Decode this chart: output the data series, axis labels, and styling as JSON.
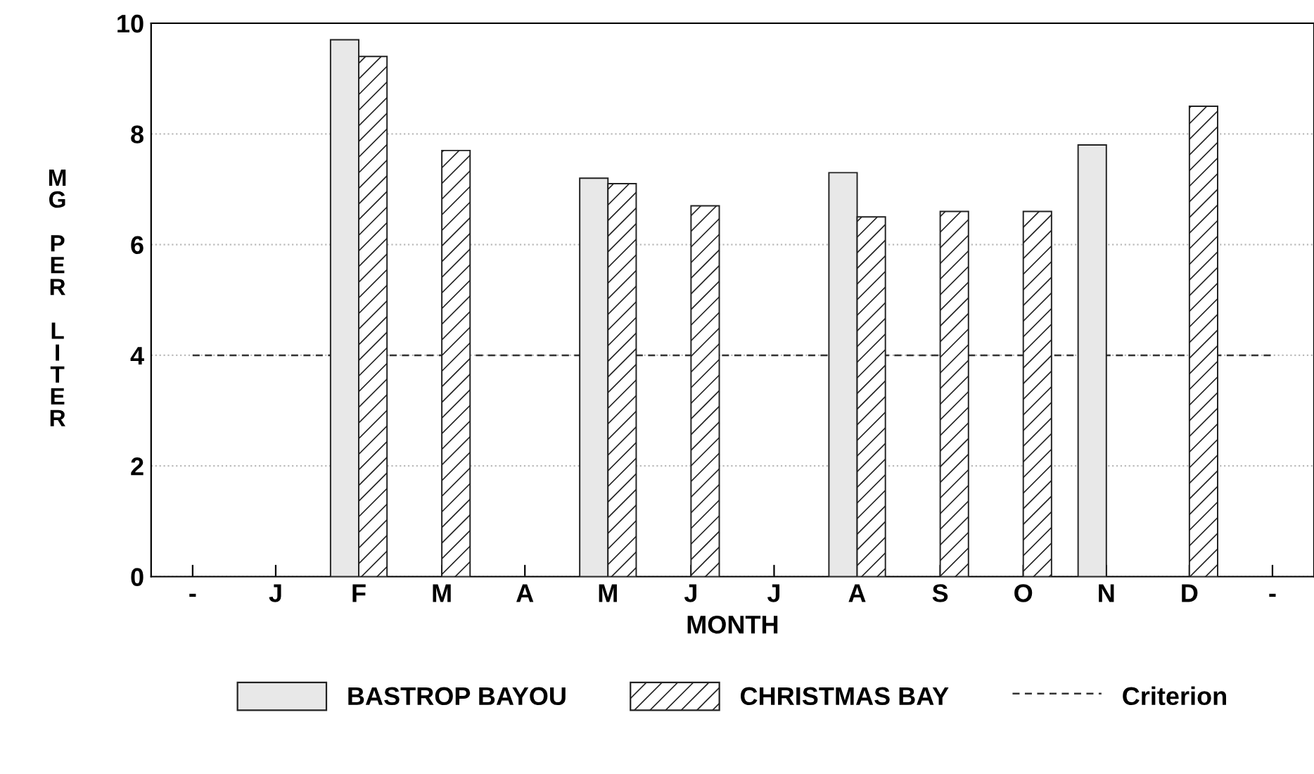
{
  "chart_data": {
    "type": "bar",
    "xlabel": "MONTH",
    "ylabel": "MG PER LITER",
    "categories": [
      "-",
      "J",
      "F",
      "M",
      "A",
      "M",
      "J",
      "J",
      "A",
      "S",
      "O",
      "N",
      "D",
      "-"
    ],
    "series": [
      {
        "name": "BASTROP BAYOU",
        "color": "#e8e8e8",
        "values": [
          null,
          null,
          9.7,
          null,
          null,
          7.2,
          null,
          null,
          7.3,
          null,
          null,
          7.8,
          null,
          null
        ]
      },
      {
        "name": "CHRISTMAS BAY",
        "color": "#222222",
        "values": [
          null,
          null,
          9.4,
          7.7,
          null,
          7.1,
          6.7,
          null,
          6.5,
          6.6,
          6.6,
          null,
          8.5,
          null
        ]
      }
    ],
    "ref_lines": [
      {
        "axis": "y",
        "value": 4,
        "label": "Criterion",
        "color": "#333333",
        "line_style": "dashed"
      }
    ],
    "ylim": [
      0,
      10
    ],
    "yticks": [
      0,
      2,
      4,
      6,
      8,
      10
    ],
    "grid": "y",
    "legend": "bottom"
  }
}
